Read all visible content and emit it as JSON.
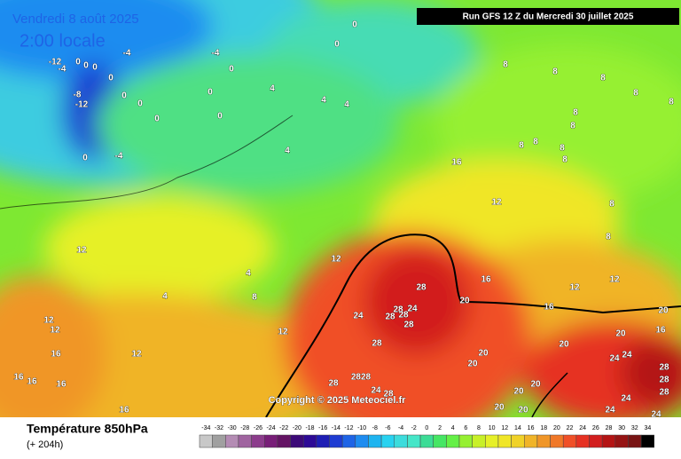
{
  "header": {
    "date": "Vendredi 8 août 2025",
    "time": "2:00 locale",
    "run": "Run GFS 12 Z du Mercredi 30 juillet 2025",
    "copyright": "Copyright © 2025 Meteociel.fr"
  },
  "map": {
    "labels": [
      "0",
      "0",
      "-12",
      "0",
      "0",
      "0",
      "-4",
      "0",
      "-4",
      "-4",
      "0",
      "0",
      "0",
      "4",
      "4",
      "4",
      "-8",
      "-12",
      "0",
      "0",
      "0",
      "0",
      "-4",
      "4",
      "8",
      "8",
      "8",
      "8",
      "8",
      "8",
      "8",
      "8",
      "8",
      "8",
      "8",
      "8",
      "8",
      "16",
      "12",
      "12",
      "12",
      "12",
      "12",
      "12",
      "12",
      "12",
      "12",
      "16",
      "16",
      "16",
      "16",
      "16",
      "16",
      "16",
      "16",
      "4",
      "4",
      "8",
      "28",
      "24",
      "28",
      "28",
      "24",
      "28",
      "28",
      "28",
      "20",
      "20",
      "20",
      "20",
      "20",
      "20",
      "24",
      "24",
      "28",
      "28",
      "28",
      "2828",
      "28",
      "24",
      "28",
      "20",
      "20",
      "20",
      "20",
      "24",
      "24",
      "24"
    ]
  },
  "legend": {
    "title": "Température 850hPa",
    "subtitle": "(+ 204h)",
    "ticks": [
      -34,
      -32,
      -30,
      -28,
      -26,
      -24,
      -22,
      -20,
      -18,
      -16,
      -14,
      -12,
      -10,
      -8,
      -6,
      -4,
      -2,
      0,
      2,
      4,
      6,
      8,
      10,
      12,
      14,
      16,
      18,
      20,
      22,
      24,
      26,
      28,
      30,
      32,
      34
    ],
    "colors": [
      "#c8c8c8",
      "#a0a0a0",
      "#b48cb4",
      "#a064a0",
      "#8c3c8c",
      "#781e78",
      "#641464",
      "#3c0a78",
      "#2d0a96",
      "#1e1eb4",
      "#1e3cd2",
      "#1e64e6",
      "#1e8cf0",
      "#1eb4f0",
      "#28d2f0",
      "#3cdcdc",
      "#46e6c8",
      "#3cdc96",
      "#46e664",
      "#64f046",
      "#96f032",
      "#c8f028",
      "#e6f028",
      "#f0e628",
      "#f0d228",
      "#f0b428",
      "#f09628",
      "#f07828",
      "#f05028",
      "#e63223",
      "#d21e1e",
      "#b41414",
      "#961414",
      "#781414",
      "#000000"
    ]
  }
}
